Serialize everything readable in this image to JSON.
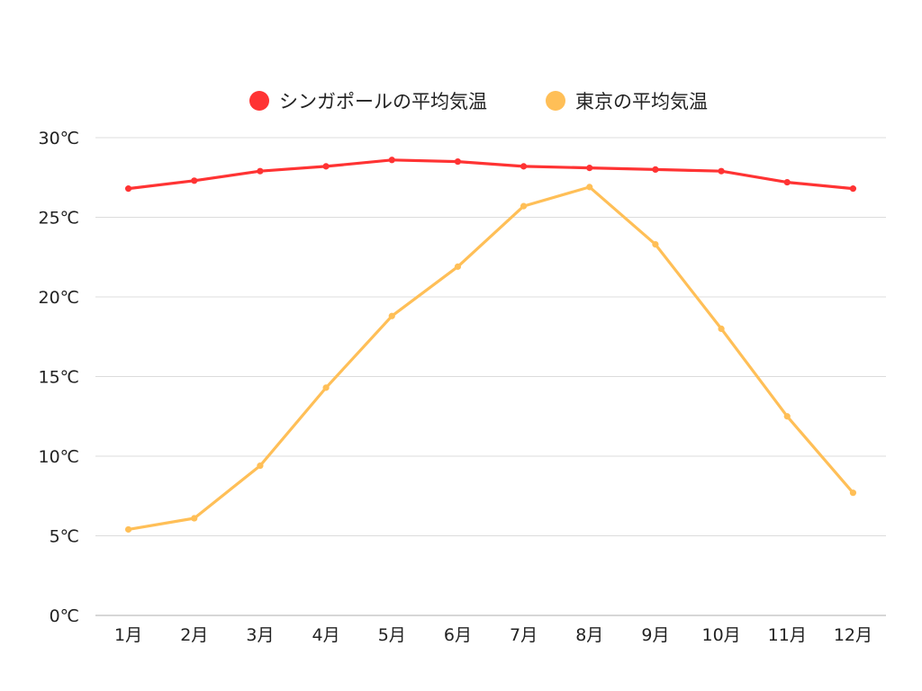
{
  "chart_data": {
    "type": "line",
    "categories": [
      "1月",
      "2月",
      "3月",
      "4月",
      "5月",
      "6月",
      "7月",
      "8月",
      "9月",
      "10月",
      "11月",
      "12月"
    ],
    "series": [
      {
        "name": "シンガポールの平均気温",
        "color": "#ff3333",
        "values": [
          26.8,
          27.3,
          27.9,
          28.2,
          28.6,
          28.5,
          28.2,
          28.1,
          28.0,
          27.9,
          27.2,
          26.8
        ]
      },
      {
        "name": "東京の平均気温",
        "color": "#ffbf57",
        "values": [
          5.4,
          6.1,
          9.4,
          14.3,
          18.8,
          21.9,
          25.7,
          26.9,
          23.3,
          18.0,
          12.5,
          7.7
        ]
      }
    ],
    "y_ticks": [
      "0℃",
      "5℃",
      "10℃",
      "15℃",
      "20℃",
      "25℃",
      "30℃"
    ],
    "ylim": [
      0,
      30
    ],
    "grid": true,
    "legend_position": "top-center"
  }
}
